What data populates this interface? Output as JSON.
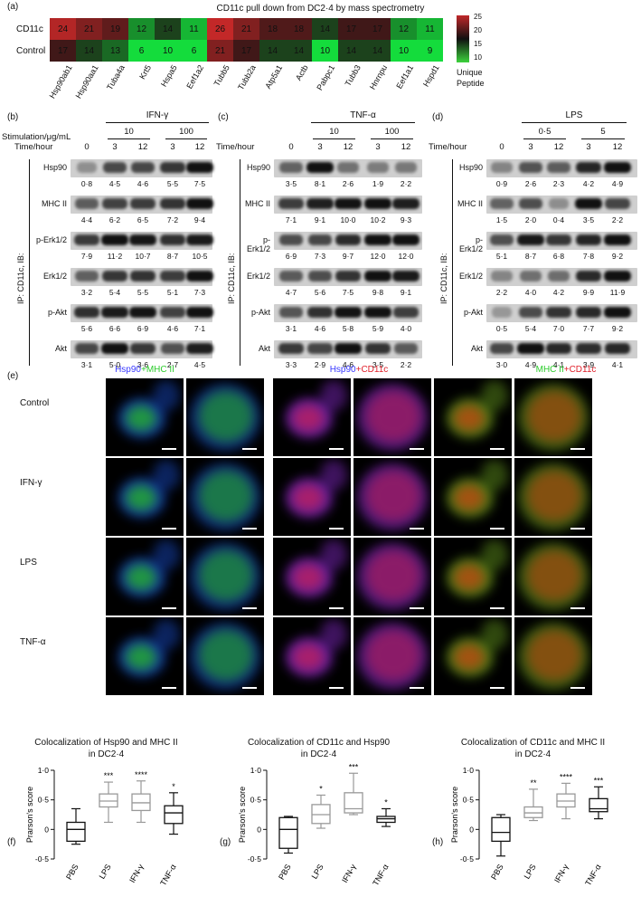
{
  "panel_a": {
    "label": "(a)",
    "title": "CD11c pull down from DC2·4 by mass spectrometry",
    "rows": [
      "CD11c",
      "Control"
    ],
    "proteins": [
      "Hsp90ab1",
      "Hsp90aa1",
      "Tuba4a",
      "Krt5",
      "Hspa5",
      "Eef1a2",
      "Tubb5",
      "Tubb2a",
      "Atp5a1",
      "Actb",
      "Pabpc1",
      "Tubb3",
      "Hnrnpu",
      "Eef1a1",
      "Hspd1"
    ],
    "values_cd11c": [
      24,
      21,
      19,
      12,
      14,
      11,
      26,
      21,
      18,
      18,
      14,
      17,
      17,
      12,
      11
    ],
    "values_control": [
      17,
      14,
      13,
      6,
      10,
      6,
      21,
      17,
      14,
      14,
      10,
      14,
      14,
      10,
      9
    ],
    "legend_ticks": [
      "25",
      "20",
      "15",
      "10"
    ],
    "legend_title": "Unique\nPeptide"
  },
  "chart_data": [
    {
      "type": "heatmap",
      "title": "CD11c pull down from DC2·4 by mass spectrometry",
      "rows": [
        "CD11c",
        "Control"
      ],
      "columns": [
        "Hsp90ab1",
        "Hsp90aa1",
        "Tuba4a",
        "Krt5",
        "Hspa5",
        "Eef1a2",
        "Tubb5",
        "Tubb2a",
        "Atp5a1",
        "Actb",
        "Pabpc1",
        "Tubb3",
        "Hnrnpu",
        "Eef1a1",
        "Hspd1"
      ],
      "values": [
        [
          24,
          21,
          19,
          12,
          14,
          11,
          26,
          21,
          18,
          18,
          14,
          17,
          17,
          12,
          11
        ],
        [
          17,
          14,
          13,
          6,
          10,
          6,
          21,
          17,
          14,
          14,
          10,
          14,
          14,
          10,
          9
        ]
      ],
      "legend": "Unique Peptide",
      "scale_range": [
        10,
        25
      ]
    },
    {
      "type": "box",
      "title": "Colocalization of Hsp90 and MHC II in DC2·4",
      "ylabel": "Prarson's score",
      "categories": [
        "PBS",
        "LPS",
        "IFN-γ",
        "TNF-α"
      ],
      "significance": [
        "",
        "***",
        "****",
        "*"
      ],
      "ylim": [
        -0.5,
        1.0
      ],
      "boxes": [
        {
          "min": -0.25,
          "q1": -0.2,
          "median": 0.0,
          "q3": 0.12,
          "max": 0.35
        },
        {
          "min": 0.12,
          "q1": 0.38,
          "median": 0.48,
          "q3": 0.6,
          "max": 0.8
        },
        {
          "min": 0.12,
          "q1": 0.32,
          "median": 0.45,
          "q3": 0.6,
          "max": 0.82
        },
        {
          "min": -0.08,
          "q1": 0.1,
          "median": 0.28,
          "q3": 0.4,
          "max": 0.62
        }
      ]
    },
    {
      "type": "box",
      "title": "Colocalization of CD11c and Hsp90 in DC2·4",
      "ylabel": "Prarson's score",
      "categories": [
        "PBS",
        "LPS",
        "IFN-γ",
        "TNF-α"
      ],
      "significance": [
        "",
        "*",
        "***",
        "*"
      ],
      "ylim": [
        -0.5,
        1.0
      ],
      "boxes": [
        {
          "min": -0.4,
          "q1": -0.32,
          "median": 0.0,
          "q3": 0.2,
          "max": 0.22
        },
        {
          "min": 0.02,
          "q1": 0.1,
          "median": 0.25,
          "q3": 0.42,
          "max": 0.58
        },
        {
          "min": 0.25,
          "q1": 0.28,
          "median": 0.35,
          "q3": 0.62,
          "max": 0.95
        },
        {
          "min": 0.05,
          "q1": 0.12,
          "median": 0.18,
          "q3": 0.22,
          "max": 0.35
        }
      ]
    },
    {
      "type": "box",
      "title": "Colocalization of CD11c and MHC II in DC2·4",
      "ylabel": "Prarson's score",
      "categories": [
        "PBS",
        "LPS",
        "IFN-γ",
        "TNF-α"
      ],
      "significance": [
        "",
        "**",
        "****",
        "***"
      ],
      "ylim": [
        -0.5,
        1.0
      ],
      "boxes": [
        {
          "min": -0.45,
          "q1": -0.2,
          "median": -0.05,
          "q3": 0.2,
          "max": 0.25
        },
        {
          "min": 0.15,
          "q1": 0.2,
          "median": 0.28,
          "q3": 0.38,
          "max": 0.68
        },
        {
          "min": 0.18,
          "q1": 0.38,
          "median": 0.48,
          "q3": 0.6,
          "max": 0.78
        },
        {
          "min": 0.18,
          "q1": 0.3,
          "median": 0.35,
          "q3": 0.52,
          "max": 0.72
        }
      ]
    }
  ],
  "panel_b": {
    "label": "(b)",
    "treatment": "IFN-γ",
    "stim_label": "Stimulation/μg/mL",
    "time_label": "Time/hour",
    "doses": [
      "10",
      "100"
    ],
    "times": [
      "0",
      "3",
      "12",
      "3",
      "12"
    ],
    "ip_label": "IP: CD11c, IB:",
    "rows": [
      {
        "name": "Hsp90",
        "q": [
          "0·8",
          "4·5",
          "4·6",
          "5·5",
          "7·5"
        ]
      },
      {
        "name": "MHC II",
        "q": [
          "4·4",
          "6·2",
          "6·5",
          "7·2",
          "9·4"
        ]
      },
      {
        "name": "p-Erk1/2",
        "q": [
          "7·9",
          "11·2",
          "10·7",
          "8·7",
          "10·5"
        ]
      },
      {
        "name": "Erk1/2",
        "q": [
          "3·2",
          "5·4",
          "5·5",
          "5·1",
          "7·3"
        ]
      },
      {
        "name": "p-Akt",
        "q": [
          "5·6",
          "6·6",
          "6·9",
          "4·6",
          "7·1"
        ]
      },
      {
        "name": "Akt",
        "q": [
          "3·1",
          "5·0",
          "3·6",
          "2·7",
          "4·5"
        ]
      }
    ]
  },
  "panel_c": {
    "label": "(c)",
    "treatment": "TNF-α",
    "time_label": "Time/hour",
    "doses": [
      "10",
      "100"
    ],
    "times": [
      "0",
      "3",
      "12",
      "3",
      "12"
    ],
    "ip_label": "IP: CD11c, IB:",
    "rows": [
      {
        "name": "Hsp90",
        "q": [
          "3·5",
          "8·1",
          "2·6",
          "1·9",
          "2·2"
        ]
      },
      {
        "name": "MHC II",
        "q": [
          "7·1",
          "9·1",
          "10·0",
          "10·2",
          "9·3"
        ]
      },
      {
        "name": "p-Erk1/2",
        "q": [
          "6·9",
          "7·3",
          "9·7",
          "12·0",
          "12·0"
        ]
      },
      {
        "name": "Erk1/2",
        "q": [
          "4·7",
          "5·6",
          "7·5",
          "9·8",
          "9·1"
        ]
      },
      {
        "name": "p-Akt",
        "q": [
          "3·1",
          "4·6",
          "5·8",
          "5·9",
          "4·0"
        ]
      },
      {
        "name": "Akt",
        "q": [
          "3·3",
          "2·9",
          "4·6",
          "3·5",
          "2·2"
        ]
      }
    ]
  },
  "panel_d": {
    "label": "(d)",
    "treatment": "LPS",
    "time_label": "Time/hour",
    "doses": [
      "0·5",
      "5"
    ],
    "times": [
      "0",
      "3",
      "12",
      "3",
      "12"
    ],
    "ip_label": "IP: CD11c, IB:",
    "rows": [
      {
        "name": "Hsp90",
        "q": [
          "0·9",
          "2·6",
          "2·3",
          "4·2",
          "4·9"
        ]
      },
      {
        "name": "MHC II",
        "q": [
          "1·5",
          "2·0",
          "0·4",
          "3·5",
          "2·2"
        ]
      },
      {
        "name": "p-Erk1/2",
        "q": [
          "5·1",
          "8·7",
          "6·8",
          "7·8",
          "9·2"
        ]
      },
      {
        "name": "Erk1/2",
        "q": [
          "2·2",
          "4·0",
          "4·2",
          "9·9",
          "11·9"
        ]
      },
      {
        "name": "p-Akt",
        "q": [
          "0·5",
          "5·4",
          "7·0",
          "7·7",
          "9·2"
        ]
      },
      {
        "name": "Akt",
        "q": [
          "3·0",
          "4·9",
          "4·1",
          "3·9",
          "4·1"
        ]
      }
    ]
  },
  "panel_e": {
    "label": "(e)",
    "col_headers": [
      {
        "a": "Hsp90",
        "plus": "+",
        "b": "MHC II",
        "ca": "#3a3aff",
        "cb": "#2ecc2e"
      },
      {
        "a": "Hsp90",
        "plus": "+",
        "b": "CD11c",
        "ca": "#3a3aff",
        "cb": "#e0202a"
      },
      {
        "a": "MHC II",
        "plus": "+",
        "b": "CD11c",
        "ca": "#2ecc2e",
        "cb": "#e0202a"
      }
    ],
    "rows": [
      "Control",
      "IFN-γ",
      "LPS",
      "TNF-α"
    ]
  },
  "panel_f": {
    "label": "(f)",
    "title1": "Colocalization of Hsp90 and MHC II",
    "title2": "in DC2·4"
  },
  "panel_g": {
    "label": "(g)",
    "title1": "Colocalization of CD11c and Hsp90",
    "title2": "in DC2·4"
  },
  "panel_h": {
    "label": "(h)",
    "title1": "Colocalization of CD11c and MHC II",
    "title2": "in DC2·4"
  },
  "axis": {
    "yticks": [
      "1·0",
      "0·5",
      "0",
      "-0·5"
    ],
    "ylabel": "Prarson's score"
  }
}
